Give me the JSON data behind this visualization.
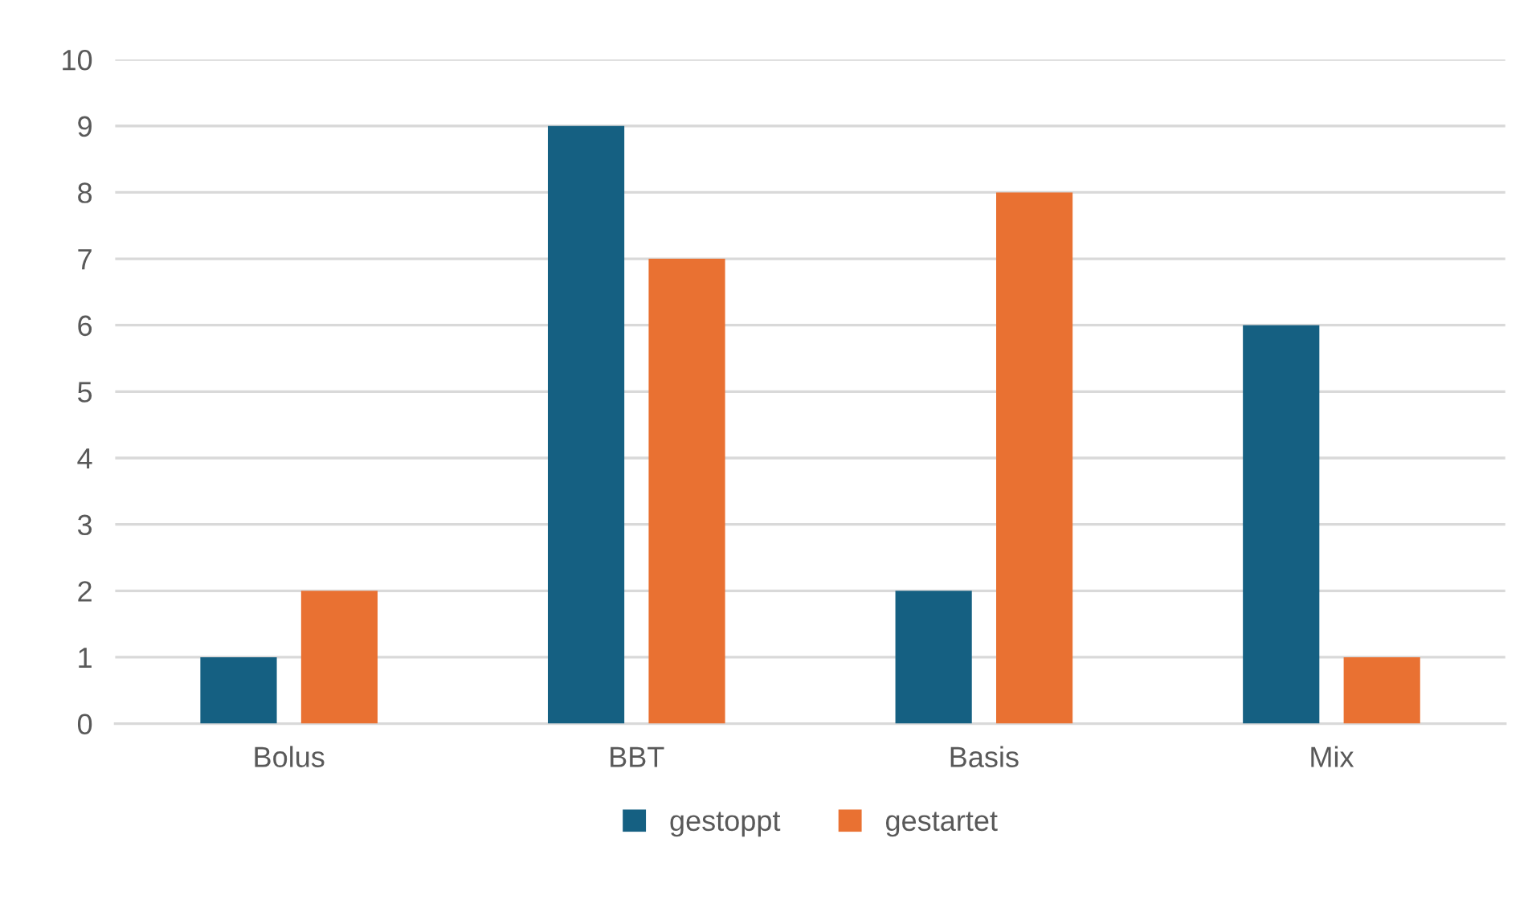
{
  "chart_data": {
    "type": "bar",
    "categories": [
      "Bolus",
      "BBT",
      "Basis",
      "Mix"
    ],
    "series": [
      {
        "name": "gestoppt",
        "color": "#156082",
        "values": [
          1,
          9,
          2,
          6
        ]
      },
      {
        "name": "gestartet",
        "color": "#e97132",
        "values": [
          2,
          7,
          8,
          1
        ]
      }
    ],
    "ylim": [
      0,
      10
    ],
    "yticks": [
      0,
      1,
      2,
      3,
      4,
      5,
      6,
      7,
      8,
      9,
      10
    ],
    "grid": "y",
    "legend": "bottom"
  }
}
